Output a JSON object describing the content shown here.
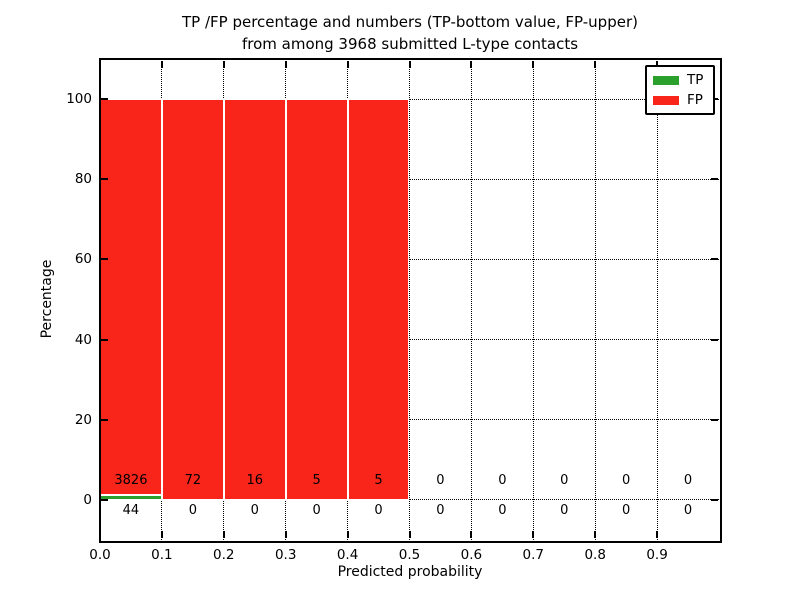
{
  "figure": {
    "title_line1": "TP /FP percentage and numbers (TP-bottom value, FP-upper)",
    "title_line2": "from among 3968 submitted L-type contacts",
    "xlabel": "Predicted probability",
    "ylabel": "Percentage"
  },
  "chart_data": {
    "type": "bar",
    "stacked": true,
    "title": "TP /FP percentage and numbers (TP-bottom value, FP-upper) from among 3968 submitted L-type contacts",
    "xlabel": "Predicted probability",
    "ylabel": "Percentage",
    "xlim": [
      0.0,
      1.0
    ],
    "ylim": [
      -10,
      110
    ],
    "xtick_labels": [
      "0.0",
      "0.1",
      "0.2",
      "0.3",
      "0.4",
      "0.5",
      "0.6",
      "0.7",
      "0.8",
      "0.9"
    ],
    "ytick_labels": [
      "0",
      "20",
      "40",
      "60",
      "80",
      "100"
    ],
    "grid": "dotted",
    "legend_position": "upper right",
    "total_contacts": 3968,
    "bin_edges": [
      0.0,
      0.1,
      0.2,
      0.3,
      0.4,
      0.5,
      0.6,
      0.7,
      0.8,
      0.9,
      1.0
    ],
    "series": [
      {
        "name": "TP",
        "color": "#2ca02c",
        "counts": [
          44,
          0,
          0,
          0,
          0,
          0,
          0,
          0,
          0,
          0
        ],
        "percents": [
          1.14,
          0,
          0,
          0,
          0,
          0,
          0,
          0,
          0,
          0
        ]
      },
      {
        "name": "FP",
        "color": "#fa251a",
        "counts": [
          3826,
          72,
          16,
          5,
          5,
          0,
          0,
          0,
          0,
          0
        ],
        "percents": [
          98.86,
          100,
          100,
          100,
          100,
          0,
          0,
          0,
          0,
          0
        ]
      }
    ]
  }
}
